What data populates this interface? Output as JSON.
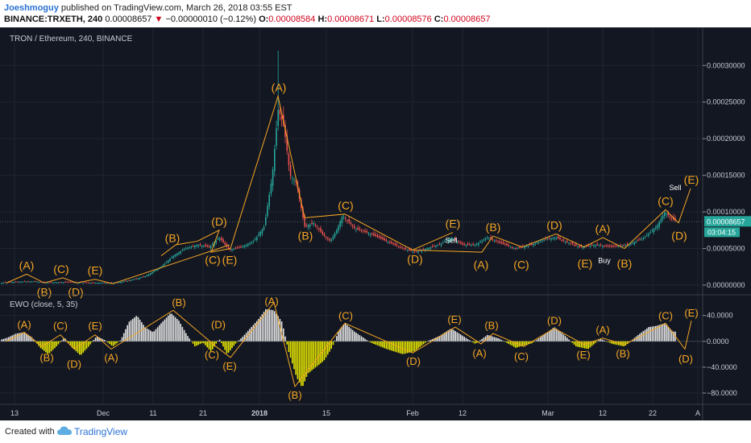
{
  "header": {
    "publisher": "Joeshmoguy",
    "published_text": "published on TradingView.com, March 26, 2018 03:55 EST",
    "symbol": "BINANCE:TRXETH, 240",
    "last": "0.00008657",
    "change": "−0.00000010 (−0.12%)",
    "o_label": "O:",
    "o_value": "0.00008584",
    "h_label": "H:",
    "h_value": "0.00008671",
    "l_label": "L:",
    "l_value": "0.00008576",
    "c_label": "C:",
    "c_value": "0.00008657"
  },
  "footer": {
    "created_with": "Created with",
    "brand": "TradingView"
  },
  "colors": {
    "background": "#131722",
    "wave": "#f5a623",
    "bull": "#26a69a",
    "bear": "#ef5350",
    "osc_pos": "#e6e6e6",
    "osc_neg": "#e8e800",
    "price_tag": "#26a69a"
  },
  "chart_data": [
    {
      "type": "candlestick",
      "title": "TRON / Ethereum, 240, BINANCE",
      "x_ticks": [
        "13",
        "Dec",
        "11",
        "21",
        "2018",
        "15",
        "Feb",
        "12",
        "Mar",
        "12",
        "22",
        "A"
      ],
      "y_ticks": [
        "0.00030000",
        "0.00025000",
        "0.00020000",
        "0.00015000",
        "0.00010000",
        "0.00005000",
        "0.00000000"
      ],
      "ylim": [
        0.0,
        0.00033
      ],
      "price_tag": "0.00008657",
      "countdown": "03:04:15",
      "close_path": [
        [
          0,
          3e-06
        ],
        [
          20,
          4.5e-06
        ],
        [
          40,
          5e-06
        ],
        [
          60,
          3.5e-06
        ],
        [
          80,
          4e-06
        ],
        [
          100,
          3.5e-06
        ],
        [
          120,
          3e-06
        ],
        [
          140,
          3e-06
        ],
        [
          160,
          6e-06
        ],
        [
          180,
          1.2e-05
        ],
        [
          200,
          2.5e-05
        ],
        [
          215,
          4e-05
        ],
        [
          230,
          5e-05
        ],
        [
          245,
          5.5e-05
        ],
        [
          260,
          5.2e-05
        ],
        [
          272,
          6.5e-05
        ],
        [
          285,
          4.8e-05
        ],
        [
          300,
          5.2e-05
        ],
        [
          315,
          6e-05
        ],
        [
          328,
          8e-05
        ],
        [
          338,
          0.00015
        ],
        [
          345,
          0.00024
        ],
        [
          352,
          0.00022
        ],
        [
          360,
          0.00015
        ],
        [
          368,
          0.00014
        ],
        [
          378,
          8e-05
        ],
        [
          390,
          8.5e-05
        ],
        [
          400,
          7e-05
        ],
        [
          410,
          6e-05
        ],
        [
          418,
          7.5e-05
        ],
        [
          425,
          9.5e-05
        ],
        [
          440,
          7.8e-05
        ],
        [
          460,
          7e-05
        ],
        [
          480,
          6e-05
        ],
        [
          500,
          5e-05
        ],
        [
          515,
          4.5e-05
        ],
        [
          530,
          5e-05
        ],
        [
          545,
          5.5e-05
        ],
        [
          560,
          6.5e-05
        ],
        [
          575,
          5.5e-05
        ],
        [
          590,
          5.5e-05
        ],
        [
          605,
          6.5e-05
        ],
        [
          620,
          5.8e-05
        ],
        [
          640,
          5e-05
        ],
        [
          660,
          5.5e-05
        ],
        [
          675,
          6.2e-05
        ],
        [
          690,
          6.5e-05
        ],
        [
          705,
          5.8e-05
        ],
        [
          720,
          5.2e-05
        ],
        [
          740,
          5.5e-05
        ],
        [
          760,
          5.2e-05
        ],
        [
          780,
          5.5e-05
        ],
        [
          800,
          6.5e-05
        ],
        [
          815,
          8e-05
        ],
        [
          825,
          0.0001
        ],
        [
          832,
          9.2e-05
        ],
        [
          840,
          8.66e-05
        ]
      ],
      "wave_lines": [
        [
          [
            8,
            3e-06
          ],
          [
            33,
            1.5e-05
          ],
          [
            55,
            3e-06
          ],
          [
            78,
            1e-05
          ],
          [
            95,
            3e-06
          ],
          [
            118,
            8e-06
          ],
          [
            140,
            2e-06
          ],
          [
            285,
            5.5e-05
          ]
        ],
        [
          [
            200,
            4e-05
          ],
          [
            218,
            5.5e-05
          ],
          [
            245,
            6e-05
          ],
          [
            272,
            7.5e-05
          ],
          [
            262,
            4.5e-05
          ],
          [
            286,
            5e-05
          ],
          [
            345,
            0.000258
          ],
          [
            378,
            9.2e-05
          ],
          [
            428,
            9.7e-05
          ],
          [
            512,
            4.8e-05
          ],
          [
            562,
            7.2e-05
          ]
        ],
        [
          [
            512,
            4.8e-05
          ],
          [
            598,
            4.5e-05
          ],
          [
            612,
            6.7e-05
          ],
          [
            648,
            5.2e-05
          ],
          [
            690,
            7e-05
          ],
          [
            725,
            5.2e-05
          ],
          [
            748,
            6.5e-05
          ],
          [
            775,
            5e-05
          ],
          [
            826,
            0.000103
          ],
          [
            842,
            8.5e-05
          ],
          [
            857,
            0.000132
          ]
        ]
      ],
      "wave_labels": [
        {
          "label": "(A)",
          "x": 33,
          "y": 1.5e-05,
          "pos": "above"
        },
        {
          "label": "(B)",
          "x": 55,
          "y": 3e-06,
          "pos": "below"
        },
        {
          "label": "(C)",
          "x": 76,
          "y": 1e-05,
          "pos": "above"
        },
        {
          "label": "(D)",
          "x": 94,
          "y": 3e-06,
          "pos": "below"
        },
        {
          "label": "(E)",
          "x": 118,
          "y": 8e-06,
          "pos": "above"
        },
        {
          "label": "(B)",
          "x": 214,
          "y": 5.2e-05,
          "pos": "above"
        },
        {
          "label": "(C)",
          "x": 264,
          "y": 4.7e-05,
          "pos": "below"
        },
        {
          "label": "(D)",
          "x": 272,
          "y": 7.5e-05,
          "pos": "above"
        },
        {
          "label": "(E)",
          "x": 285,
          "y": 4.7e-05,
          "pos": "below"
        },
        {
          "label": "(A)",
          "x": 346,
          "y": 0.000258,
          "pos": "above"
        },
        {
          "label": "(B)",
          "x": 379,
          "y": 8e-05,
          "pos": "below"
        },
        {
          "label": "(C)",
          "x": 429,
          "y": 9.7e-05,
          "pos": "above"
        },
        {
          "label": "(D)",
          "x": 515,
          "y": 4.8e-05,
          "pos": "below"
        },
        {
          "label": "(E)",
          "x": 562,
          "y": 7.2e-05,
          "pos": "above"
        },
        {
          "label": "(A)",
          "x": 597,
          "y": 4e-05,
          "pos": "below"
        },
        {
          "label": "(B)",
          "x": 612,
          "y": 6.7e-05,
          "pos": "above"
        },
        {
          "label": "(C)",
          "x": 647,
          "y": 4e-05,
          "pos": "below"
        },
        {
          "label": "(D)",
          "x": 688,
          "y": 7e-05,
          "pos": "above"
        },
        {
          "label": "(E)",
          "x": 726,
          "y": 4.2e-05,
          "pos": "below"
        },
        {
          "label": "(A)",
          "x": 748,
          "y": 6.5e-05,
          "pos": "above"
        },
        {
          "label": "(B)",
          "x": 775,
          "y": 4.2e-05,
          "pos": "below"
        },
        {
          "label": "(C)",
          "x": 826,
          "y": 0.000103,
          "pos": "above"
        },
        {
          "label": "(D)",
          "x": 843,
          "y": 8e-05,
          "pos": "below"
        },
        {
          "label": "(E)",
          "x": 858,
          "y": 0.000132,
          "pos": "above"
        }
      ],
      "annotations": [
        {
          "text": "Sell",
          "x": 560,
          "y": 5.8e-05
        },
        {
          "text": "Buy",
          "x": 750,
          "y": 3e-05
        },
        {
          "text": "Sell",
          "x": 838,
          "y": 0.00013
        }
      ]
    },
    {
      "type": "histogram",
      "title": "EWO (close, 5, 35)",
      "y_ticks": [
        "40.0000",
        "0.0000",
        "−40.0000",
        "−80.0000"
      ],
      "ylim": [
        -95,
        62
      ],
      "zero_line": 0,
      "values": [
        [
          0,
          2
        ],
        [
          10,
          6
        ],
        [
          20,
          12
        ],
        [
          30,
          14
        ],
        [
          40,
          6
        ],
        [
          50,
          -10
        ],
        [
          60,
          -20
        ],
        [
          70,
          -8
        ],
        [
          80,
          6
        ],
        [
          90,
          -10
        ],
        [
          100,
          -22
        ],
        [
          110,
          -8
        ],
        [
          120,
          8
        ],
        [
          130,
          2
        ],
        [
          140,
          -8
        ],
        [
          150,
          2
        ],
        [
          160,
          30
        ],
        [
          170,
          40
        ],
        [
          180,
          22
        ],
        [
          190,
          14
        ],
        [
          200,
          28
        ],
        [
          212,
          44
        ],
        [
          222,
          32
        ],
        [
          232,
          10
        ],
        [
          242,
          -8
        ],
        [
          252,
          -2
        ],
        [
          262,
          -16
        ],
        [
          272,
          4
        ],
        [
          282,
          -20
        ],
        [
          292,
          -4
        ],
        [
          302,
          8
        ],
        [
          312,
          22
        ],
        [
          322,
          36
        ],
        [
          330,
          50
        ],
        [
          340,
          48
        ],
        [
          350,
          30
        ],
        [
          358,
          -15
        ],
        [
          368,
          -55
        ],
        [
          375,
          -72
        ],
        [
          382,
          -50
        ],
        [
          392,
          -40
        ],
        [
          402,
          -30
        ],
        [
          412,
          -10
        ],
        [
          420,
          15
        ],
        [
          428,
          28
        ],
        [
          440,
          15
        ],
        [
          460,
          -2
        ],
        [
          480,
          -12
        ],
        [
          500,
          -20
        ],
        [
          515,
          -15
        ],
        [
          530,
          0
        ],
        [
          545,
          8
        ],
        [
          560,
          20
        ],
        [
          575,
          8
        ],
        [
          590,
          -4
        ],
        [
          605,
          10
        ],
        [
          620,
          4
        ],
        [
          640,
          -10
        ],
        [
          660,
          -3
        ],
        [
          675,
          10
        ],
        [
          688,
          22
        ],
        [
          700,
          10
        ],
        [
          715,
          -8
        ],
        [
          730,
          -12
        ],
        [
          745,
          4
        ],
        [
          760,
          -4
        ],
        [
          775,
          -8
        ],
        [
          790,
          8
        ],
        [
          805,
          22
        ],
        [
          815,
          24
        ],
        [
          825,
          28
        ],
        [
          835,
          15
        ]
      ],
      "wave_lines": [
        [
          [
            8,
            0
          ],
          [
            30,
            14
          ],
          [
            52,
            -8
          ],
          [
            75,
            10
          ],
          [
            92,
            -12
          ],
          [
            118,
            10
          ],
          [
            138,
            -12
          ],
          [
            215,
            48
          ],
          [
            268,
            -8
          ],
          [
            286,
            -25
          ],
          [
            340,
            60
          ],
          [
            366,
            -70
          ],
          [
            428,
            28
          ],
          [
            512,
            -18
          ],
          [
            565,
            22
          ],
          [
            597,
            -4
          ],
          [
            612,
            12
          ],
          [
            650,
            -8
          ],
          [
            688,
            20
          ],
          [
            725,
            -5
          ],
          [
            748,
            5
          ],
          [
            775,
            -5
          ],
          [
            826,
            28
          ],
          [
            850,
            -12
          ],
          [
            858,
            32
          ]
        ]
      ],
      "wave_labels": [
        {
          "label": "(A)",
          "x": 30,
          "y": 14,
          "pos": "above"
        },
        {
          "label": "(B)",
          "x": 58,
          "y": -12,
          "pos": "below"
        },
        {
          "label": "(C)",
          "x": 75,
          "y": 12,
          "pos": "above"
        },
        {
          "label": "(D)",
          "x": 92,
          "y": -22,
          "pos": "below"
        },
        {
          "label": "(E)",
          "x": 118,
          "y": 12,
          "pos": "above"
        },
        {
          "label": "(A)",
          "x": 138,
          "y": -12,
          "pos": "below"
        },
        {
          "label": "(B)",
          "x": 222,
          "y": 48,
          "pos": "above"
        },
        {
          "label": "(C)",
          "x": 263,
          "y": -8,
          "pos": "below"
        },
        {
          "label": "(D)",
          "x": 271,
          "y": 14,
          "pos": "above"
        },
        {
          "label": "(E)",
          "x": 285,
          "y": -25,
          "pos": "below"
        },
        {
          "label": "(A)",
          "x": 337,
          "y": 50,
          "pos": "above"
        },
        {
          "label": "(B)",
          "x": 366,
          "y": -70,
          "pos": "below"
        },
        {
          "label": "(C)",
          "x": 429,
          "y": 28,
          "pos": "above"
        },
        {
          "label": "(D)",
          "x": 513,
          "y": -18,
          "pos": "below"
        },
        {
          "label": "(E)",
          "x": 564,
          "y": 22,
          "pos": "above"
        },
        {
          "label": "(A)",
          "x": 595,
          "y": -5,
          "pos": "below"
        },
        {
          "label": "(B)",
          "x": 610,
          "y": 13,
          "pos": "above"
        },
        {
          "label": "(C)",
          "x": 647,
          "y": -10,
          "pos": "below"
        },
        {
          "label": "(D)",
          "x": 688,
          "y": 20,
          "pos": "above"
        },
        {
          "label": "(E)",
          "x": 724,
          "y": -8,
          "pos": "below"
        },
        {
          "label": "(A)",
          "x": 748,
          "y": 6,
          "pos": "above"
        },
        {
          "label": "(B)",
          "x": 773,
          "y": -6,
          "pos": "below"
        },
        {
          "label": "(C)",
          "x": 826,
          "y": 28,
          "pos": "above"
        },
        {
          "label": "(D)",
          "x": 851,
          "y": -14,
          "pos": "below"
        },
        {
          "label": "(E)",
          "x": 858,
          "y": 32,
          "pos": "above"
        }
      ]
    }
  ]
}
